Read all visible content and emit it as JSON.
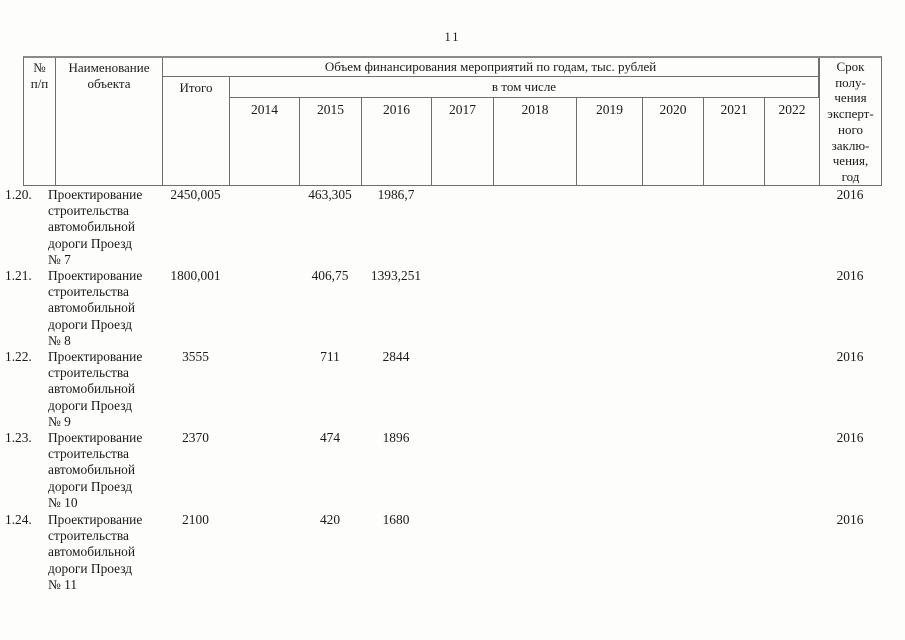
{
  "page": {
    "number": "11"
  },
  "table": {
    "header": {
      "col_num": "№\nп/п",
      "col_object": "Наименование\nобъекта",
      "volume_title": "Объем финансирования мероприятий по годам, тыс. рублей",
      "total_label": "Итого",
      "including_label": "в том числе",
      "years": [
        "2014",
        "2015",
        "2016",
        "2017",
        "2018",
        "2019",
        "2020",
        "2021",
        "2022"
      ],
      "term_label": "Срок\nполу-\nчения\nэксперт-\nного\nзаклю-\nчения,\nгод"
    },
    "rows": [
      {
        "num": "1.20.",
        "name": "Проектирование\nстроительства\nавтомобильной\nдороги Проезд\n№ 7",
        "total": "2450,005",
        "y2015": "463,305",
        "y2016": "1986,7",
        "term": "2016"
      },
      {
        "num": "1.21.",
        "name": "Проектирование\nстроительства\nавтомобильной\nдороги Проезд\n№ 8",
        "total": "1800,001",
        "y2015": "406,75",
        "y2016": "1393,251",
        "term": "2016"
      },
      {
        "num": "1.22.",
        "name": "Проектирование\nстроительства\nавтомобильной\nдороги Проезд\n№ 9",
        "total": "3555",
        "y2015": "711",
        "y2016": "2844",
        "term": "2016"
      },
      {
        "num": "1.23.",
        "name": "Проектирование\nстроительства\nавтомобильной\nдороги Проезд\n№ 10",
        "total": "2370",
        "y2015": "474",
        "y2016": "1896",
        "term": "2016"
      },
      {
        "num": "1.24.",
        "name": "Проектирование\nстроительства\nавтомобильной\nдороги Проезд\n№ 11",
        "total": "2100",
        "y2015": "420",
        "y2016": "1680",
        "term": "2016"
      }
    ]
  }
}
